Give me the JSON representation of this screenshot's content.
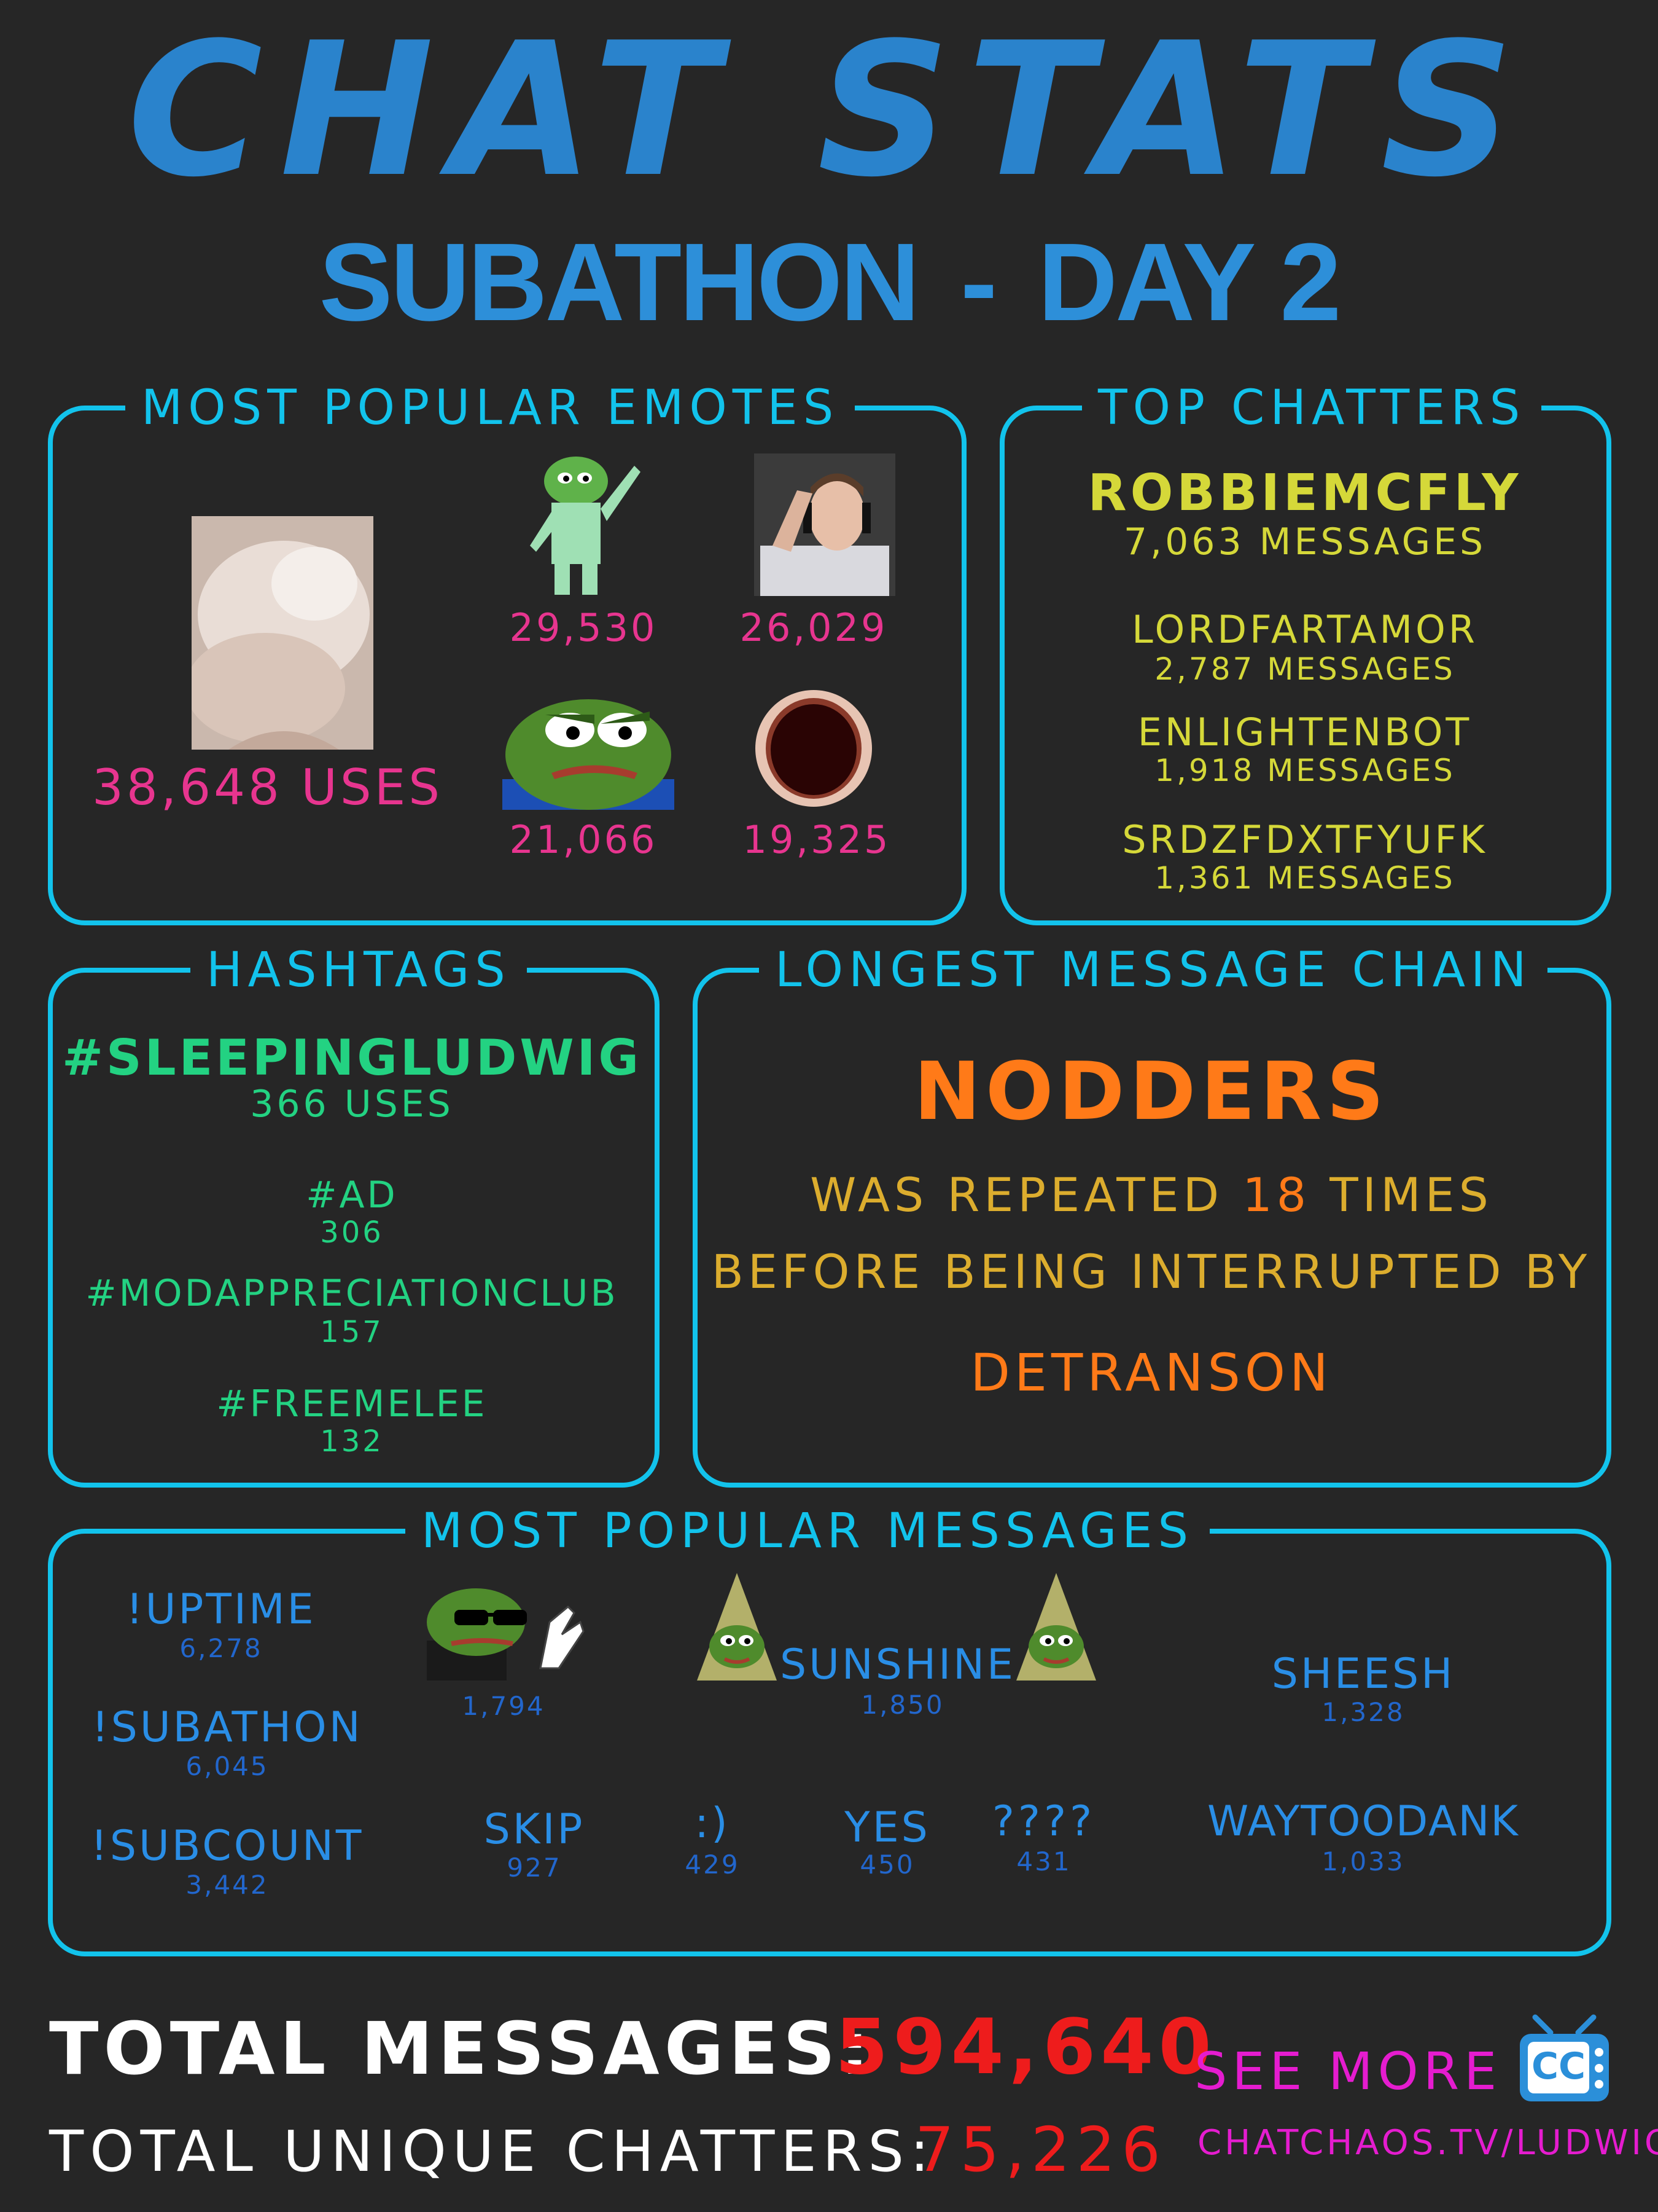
{
  "header": {
    "title": "CHAT STATS",
    "subtitle_left": "SUBATHON",
    "subtitle_dash": "-",
    "subtitle_right": "DAY 2"
  },
  "emotes": {
    "title": "MOST POPULAR EMOTES",
    "top_uses": "38,648 USES",
    "counts": [
      "29,530",
      "26,029",
      "21,066",
      "19,325"
    ]
  },
  "top_chatters": {
    "title": "TOP CHATTERS",
    "items": [
      {
        "name": "ROBBIEMCFLY",
        "count": "7,063 MESSAGES"
      },
      {
        "name": "LORDFARTAMOR",
        "count": "2,787 MESSAGES"
      },
      {
        "name": "ENLIGHTENBOT",
        "count": "1,918 MESSAGES"
      },
      {
        "name": "SRDZFDXTFYUFK",
        "count": "1,361 MESSAGES"
      }
    ]
  },
  "hashtags": {
    "title": "HASHTAGS",
    "items": [
      {
        "tag": "#SLEEPINGLUDWIG",
        "count": "366 USES"
      },
      {
        "tag": "#AD",
        "count": "306"
      },
      {
        "tag": "#MODAPPRECIATIONCLUB",
        "count": "157"
      },
      {
        "tag": "#FREEMELEE",
        "count": "132"
      }
    ]
  },
  "chain": {
    "title": "LONGEST MESSAGE CHAIN",
    "message": "NODDERS",
    "line1_pre": "WAS REPEATED",
    "line1_num": "18",
    "line1_post": "TIMES",
    "line2": "BEFORE BEING INTERRUPTED BY",
    "interrupter": "DETRANSON"
  },
  "messages": {
    "title": "MOST POPULAR MESSAGES",
    "items": [
      {
        "text": "!UPTIME",
        "count": "6,278"
      },
      {
        "text": "!SUBATHON",
        "count": "6,045"
      },
      {
        "text": "!SUBCOUNT",
        "count": "3,442"
      },
      {
        "text": "",
        "count": "1,794"
      },
      {
        "text": "SUNSHINE",
        "count": "1,850"
      },
      {
        "text": "SHEESH",
        "count": "1,328"
      },
      {
        "text": "SKIP",
        "count": "927"
      },
      {
        "text": ":)",
        "count": "429"
      },
      {
        "text": "YES",
        "count": "450"
      },
      {
        "text": "????",
        "count": "431"
      },
      {
        "text": "WAYTOODANK",
        "count": "1,033"
      }
    ]
  },
  "footer": {
    "total_label": "TOTAL MESSAGES:",
    "total_value": "594,640",
    "unique_label": "TOTAL UNIQUE CHATTERS:",
    "unique_value": "75,226",
    "see_more": "SEE MORE",
    "url": "CHATCHAOS.TV/LUDWIG",
    "logo_text": "CC"
  },
  "colors": {
    "background": "#262626",
    "border": "#12c3ec",
    "title": "#2a83cc",
    "pink": "#e7358f",
    "yellow": "#d5d839",
    "green": "#23d282",
    "orange": "#ff7a18",
    "red": "#ee1c1c",
    "magenta": "#e51ccf"
  }
}
